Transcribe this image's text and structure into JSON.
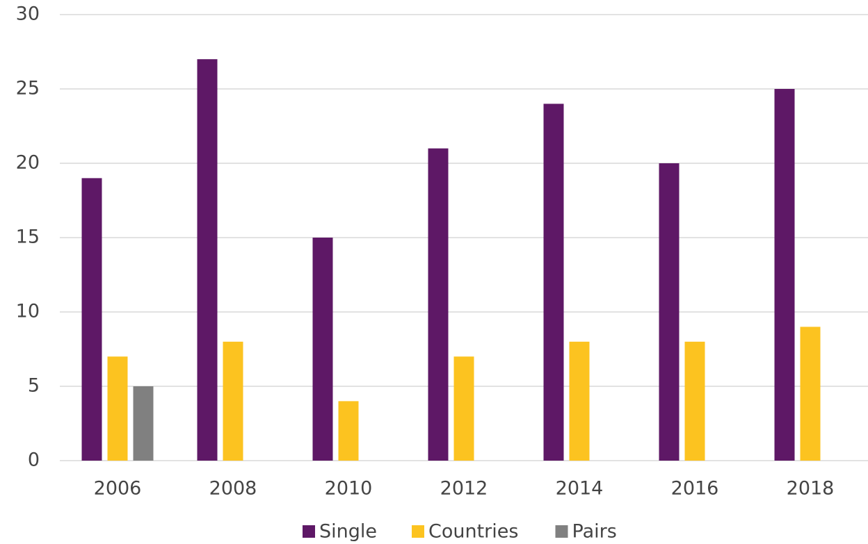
{
  "chart_data": {
    "type": "bar",
    "categories": [
      "2006",
      "2008",
      "2010",
      "2012",
      "2014",
      "2016",
      "2018"
    ],
    "series": [
      {
        "name": "Single",
        "color": "#5e1866",
        "values": [
          19,
          27,
          15,
          21,
          24,
          20,
          25
        ]
      },
      {
        "name": "Countries",
        "color": "#fcc320",
        "values": [
          7,
          8,
          4,
          7,
          8,
          8,
          9
        ]
      },
      {
        "name": "Pairs",
        "color": "#808080",
        "values": [
          5,
          null,
          null,
          null,
          null,
          null,
          null
        ]
      }
    ],
    "ylim": [
      0,
      30
    ],
    "yticks": [
      0,
      5,
      10,
      15,
      20,
      25,
      30
    ],
    "grid": true,
    "legend": "bottom"
  }
}
